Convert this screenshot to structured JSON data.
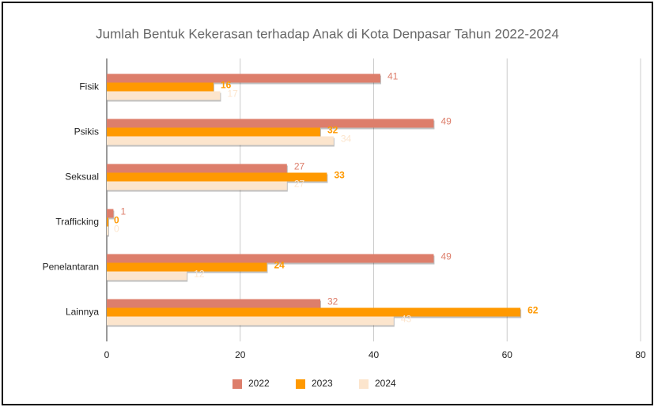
{
  "chart_data": {
    "type": "bar",
    "orientation": "horizontal",
    "title": "Jumlah Bentuk Kekerasan terhadap Anak di Kota Denpasar Tahun 2022-2024",
    "categories": [
      "Fisik",
      "Psikis",
      "Seksual",
      "Trafficking",
      "Penelantaran",
      "Lainnya"
    ],
    "series": [
      {
        "name": "2022",
        "color": "#dd7e6b",
        "values": [
          41,
          49,
          27,
          1,
          49,
          32
        ]
      },
      {
        "name": "2023",
        "color": "#ff9900",
        "values": [
          16,
          32,
          33,
          0,
          24,
          62
        ]
      },
      {
        "name": "2024",
        "color": "#fce5cd",
        "values": [
          17,
          34,
          27,
          0,
          12,
          43
        ]
      }
    ],
    "xlim": [
      0,
      80
    ],
    "xticks": [
      0,
      20,
      40,
      60,
      80
    ],
    "grid": true,
    "legend": "bottom"
  }
}
